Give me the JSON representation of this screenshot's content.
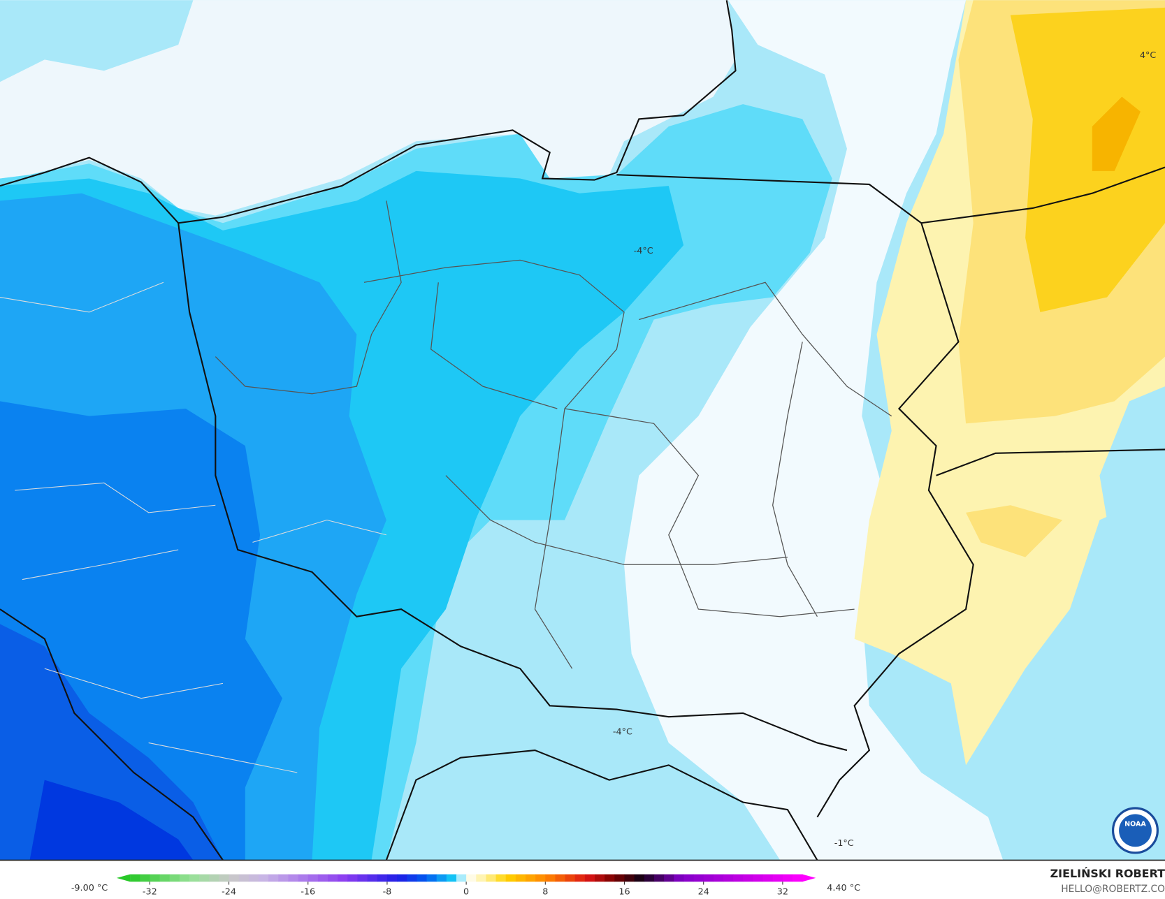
{
  "map_labels": [
    "4°C",
    "-4°C",
    "-4°C",
    "-1°C"
  ],
  "colorbar": {
    "min_label": "-9.00 °C",
    "max_label": "4.40 °C",
    "range": [
      -34,
      34
    ],
    "ticks": [
      -32,
      -24,
      -16,
      -8,
      0,
      8,
      16,
      24,
      32
    ]
  },
  "credit": {
    "author": "ZIELIŃSKI ROBERT",
    "email": "HELLO@ROBERTZ.CO"
  }
}
